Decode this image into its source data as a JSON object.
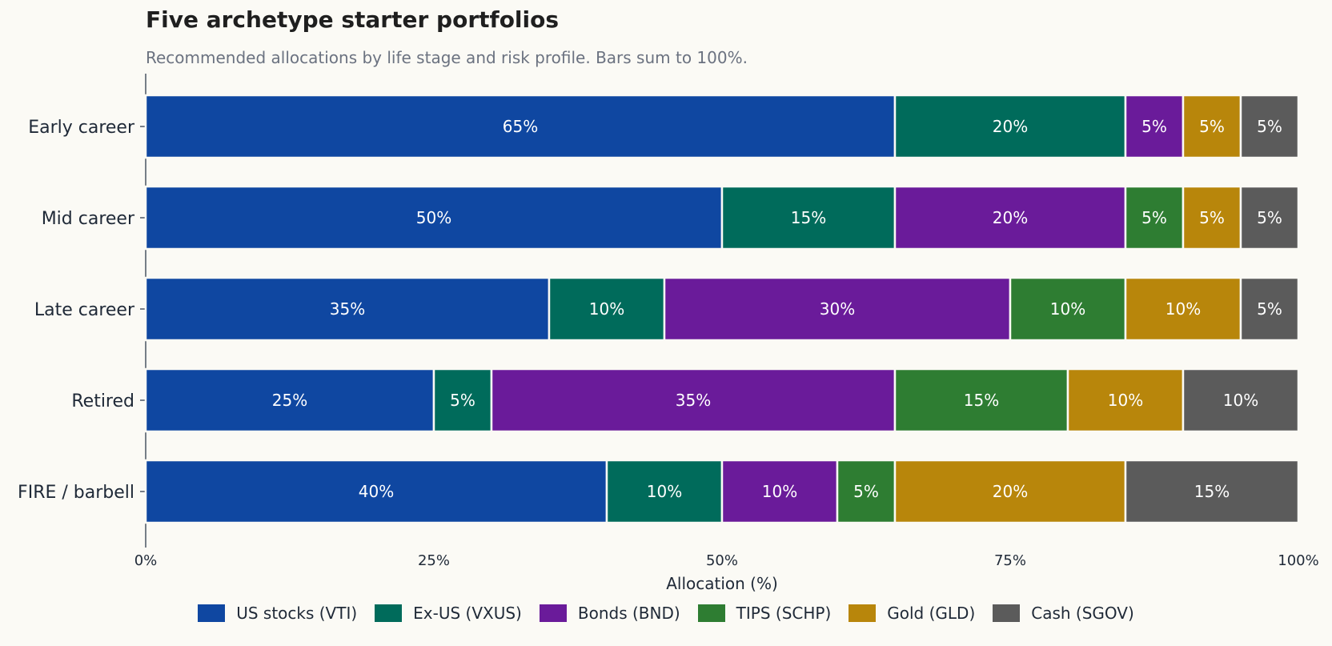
{
  "chart_data": {
    "type": "bar",
    "orientation": "horizontal",
    "stacked": true,
    "title": "Five archetype starter portfolios",
    "subtitle": "Recommended allocations by life stage and risk profile. Bars sum to 100%.",
    "xlabel": "Allocation (%)",
    "ylabel": "",
    "xlim": [
      0,
      100
    ],
    "xticks": [
      0,
      25,
      50,
      75,
      100
    ],
    "xtick_labels": [
      "0%",
      "25%",
      "50%",
      "75%",
      "100%"
    ],
    "categories": [
      "Early career",
      "Mid career",
      "Late career",
      "Retired",
      "FIRE / barbell"
    ],
    "series": [
      {
        "name": "US stocks (VTI)",
        "color": "#0f47a1",
        "values": [
          65,
          50,
          35,
          25,
          40
        ]
      },
      {
        "name": "Ex-US (VXUS)",
        "color": "#006b5b",
        "values": [
          20,
          15,
          10,
          5,
          10
        ]
      },
      {
        "name": "Bonds (BND)",
        "color": "#6a1b9a",
        "values": [
          5,
          20,
          30,
          35,
          10
        ]
      },
      {
        "name": "TIPS (SCHP)",
        "color": "#2e7d32",
        "values": [
          0,
          5,
          10,
          15,
          5
        ]
      },
      {
        "name": "Gold (GLD)",
        "color": "#b8860b",
        "values": [
          5,
          5,
          10,
          10,
          20
        ]
      },
      {
        "name": "Cash (SGOV)",
        "color": "#5b5b5b",
        "values": [
          5,
          5,
          5,
          10,
          15
        ]
      }
    ],
    "value_label_suffix": "%",
    "legend_position": "bottom",
    "grid": false
  }
}
